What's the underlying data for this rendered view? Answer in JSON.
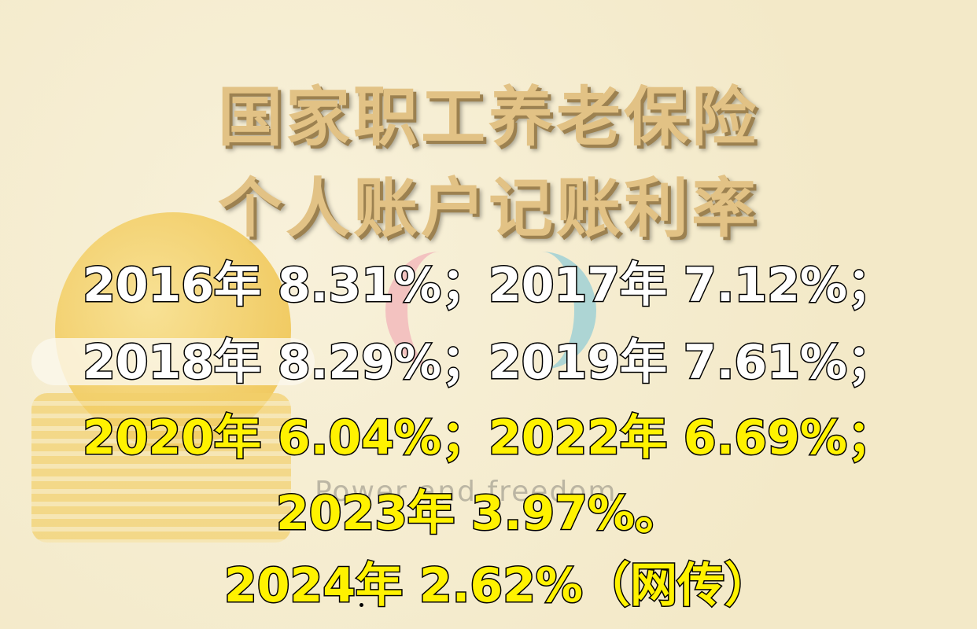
{
  "title": {
    "line1": "国家职工养老保险",
    "line2": "个人账户记账利率"
  },
  "rates": [
    {
      "text": "2016年 8.31%；2017年 7.12%；",
      "color": "white"
    },
    {
      "text": "2018年 8.29%；2019年 7.61%；",
      "color": "white"
    },
    {
      "text": "2020年 6.04%；2022年 6.69%；",
      "color": "yellow"
    },
    {
      "text": "2023年 3.97%。",
      "color": "yellow"
    },
    {
      "text": "2024年 2.62%（网传）",
      "color": "yellow"
    }
  ],
  "watermark": "Power and freedom",
  "colors": {
    "title": "#e2c285",
    "highlight": "#fff200",
    "white": "#ffffff",
    "background": "#f6eed2"
  }
}
